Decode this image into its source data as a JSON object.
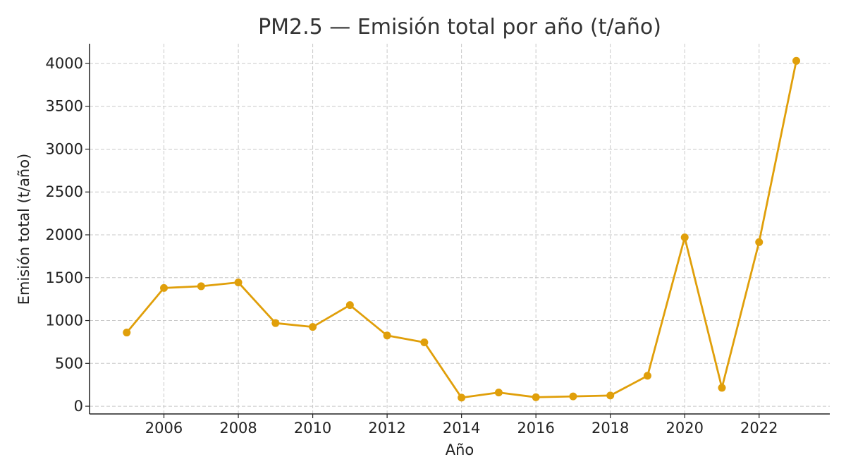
{
  "chart_data": {
    "type": "line",
    "title": "PM2.5 — Emisión total por año (t/año)",
    "xlabel": "Año",
    "ylabel": "Emisión total (t/año)",
    "x": [
      2005,
      2006,
      2007,
      2008,
      2009,
      2010,
      2011,
      2012,
      2013,
      2014,
      2015,
      2016,
      2017,
      2018,
      2019,
      2020,
      2021,
      2022,
      2023
    ],
    "series": [
      {
        "values": [
          860,
          1380,
          1400,
          1445,
          970,
          925,
          1180,
          825,
          745,
          100,
          160,
          105,
          115,
          125,
          355,
          1970,
          215,
          1915,
          4030
        ]
      }
    ],
    "xlim": [
      2004.0,
      2023.9
    ],
    "ylim": [
      -90,
      4230
    ],
    "xticks": [
      2006,
      2008,
      2010,
      2012,
      2014,
      2016,
      2018,
      2020,
      2022
    ],
    "yticks": [
      0,
      500,
      1000,
      1500,
      2000,
      2500,
      3000,
      3500,
      4000
    ],
    "grid": true,
    "colors": {
      "series": "#e09f0a"
    }
  }
}
